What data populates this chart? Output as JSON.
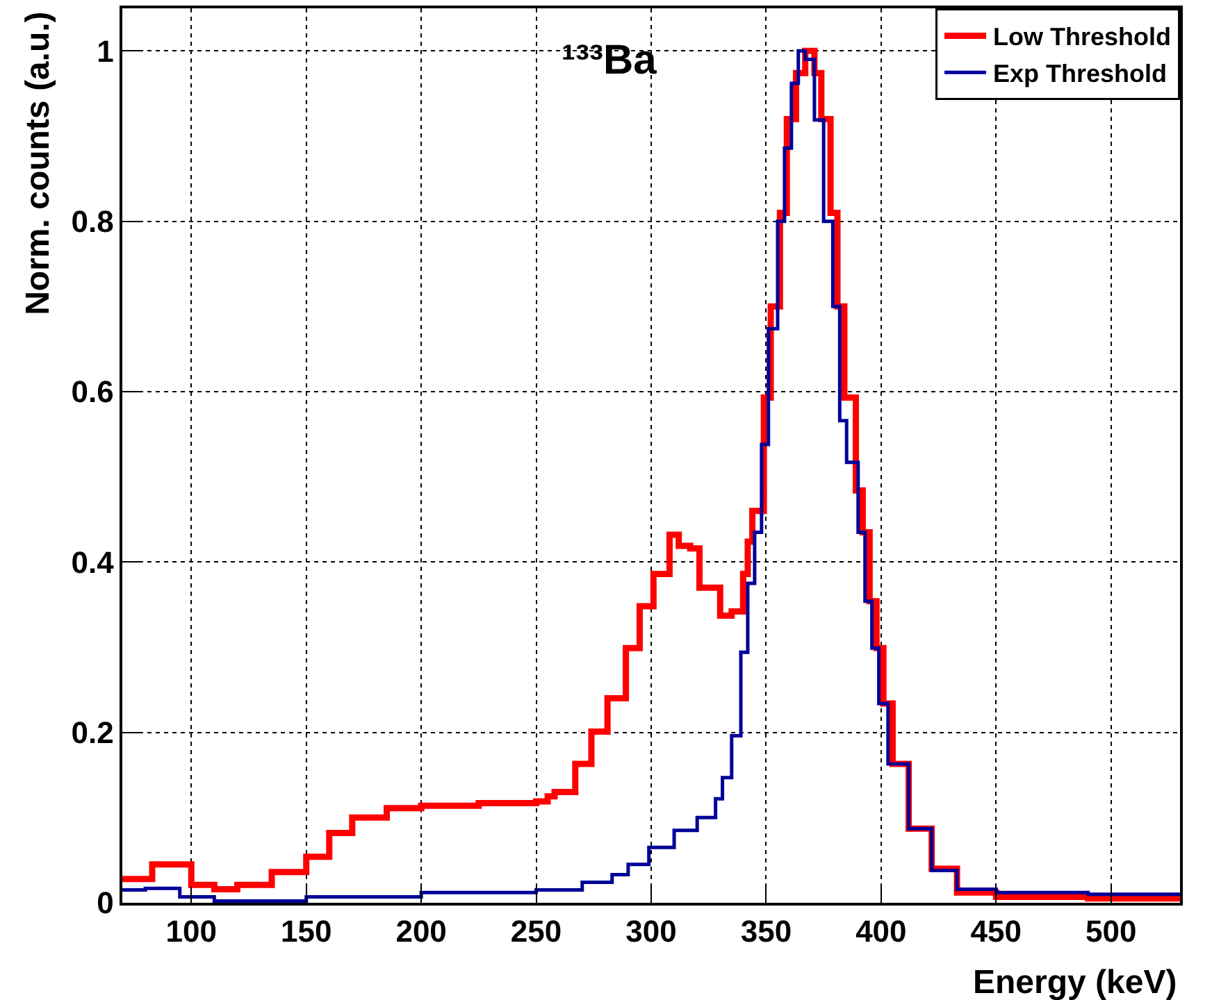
{
  "chart_data": {
    "type": "step",
    "title": "¹³³Ba",
    "xlabel": "Energy (keV)",
    "ylabel": "Norm. counts (a.u.)",
    "xlim": [
      70,
      530
    ],
    "xticks": [
      100,
      150,
      200,
      250,
      300,
      350,
      400,
      450,
      500
    ],
    "ylim": [
      0,
      1.05
    ],
    "yticks": [
      0,
      0.2,
      0.4,
      0.6,
      0.8,
      1
    ],
    "grid": true,
    "legend": "top right",
    "line_style": "solid",
    "marker": "none",
    "series": [
      {
        "name": "Low Threshold",
        "color": "#ff0000",
        "x": [
          70,
          83,
          100,
          110,
          120,
          135,
          150,
          160,
          170,
          185,
          200,
          225,
          250,
          255,
          258,
          267,
          274,
          281,
          289,
          295,
          301,
          308,
          312,
          317,
          321,
          330,
          335,
          340,
          342,
          344,
          349,
          352,
          356,
          359,
          363,
          367,
          371,
          374,
          378,
          381,
          384,
          389,
          392,
          395,
          398,
          401,
          405,
          412,
          422,
          433,
          450,
          490,
          530
        ],
        "values": [
          0.028,
          0.045,
          0.021,
          0.016,
          0.021,
          0.036,
          0.054,
          0.082,
          0.1,
          0.111,
          0.114,
          0.117,
          0.119,
          0.125,
          0.13,
          0.163,
          0.201,
          0.24,
          0.299,
          0.348,
          0.386,
          0.432,
          0.419,
          0.416,
          0.37,
          0.337,
          0.342,
          0.386,
          0.424,
          0.46,
          0.593,
          0.7,
          0.81,
          0.92,
          0.974,
          1.0,
          0.974,
          0.92,
          0.81,
          0.7,
          0.593,
          0.484,
          0.435,
          0.354,
          0.299,
          0.234,
          0.163,
          0.087,
          0.04,
          0.012,
          0.007,
          0.005,
          0.004
        ]
      },
      {
        "name": "Exp Threshold",
        "color": "#000099",
        "x": [
          70,
          80,
          95,
          110,
          150,
          200,
          250,
          270,
          283,
          290,
          299,
          310,
          320,
          328,
          331,
          335,
          339,
          342,
          345,
          348,
          351,
          355,
          358,
          361,
          364,
          367,
          371,
          375,
          379,
          382,
          385,
          390,
          393,
          396,
          399,
          403,
          412,
          422,
          433,
          450,
          490,
          530
        ],
        "values": [
          0.015,
          0.017,
          0.007,
          0.002,
          0.007,
          0.012,
          0.015,
          0.024,
          0.033,
          0.045,
          0.065,
          0.085,
          0.1,
          0.122,
          0.147,
          0.196,
          0.294,
          0.375,
          0.435,
          0.538,
          0.674,
          0.8,
          0.886,
          0.962,
          1.0,
          0.99,
          0.919,
          0.8,
          0.7,
          0.566,
          0.517,
          0.435,
          0.354,
          0.299,
          0.234,
          0.163,
          0.087,
          0.038,
          0.016,
          0.012,
          0.01,
          0.008
        ]
      }
    ]
  }
}
